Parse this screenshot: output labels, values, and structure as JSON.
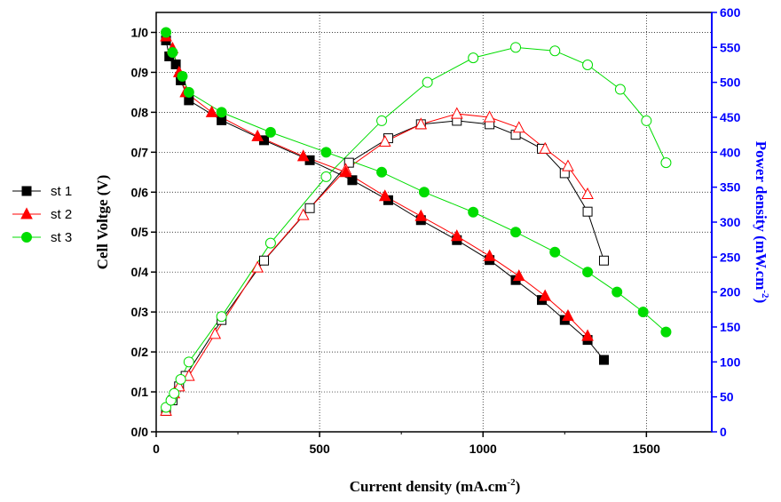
{
  "chart_data": {
    "type": "line",
    "title": "",
    "xlabel": "Current density (mA.cm",
    "xlabel_sup": "-2",
    "xlabel_tail": ")",
    "ylabel_left": "Cell Voltge (V)",
    "ylabel_right": "Power density (mW.cm",
    "ylabel_right_sup": "-2",
    "ylabel_right_tail": ")",
    "xlim": [
      0,
      1700
    ],
    "ylim_left": [
      0,
      1.05
    ],
    "ylim_right": [
      0,
      600
    ],
    "x_ticks": [
      {
        "value": 0,
        "label": "0"
      },
      {
        "value": 500,
        "label": "500"
      },
      {
        "value": 1000,
        "label": "1000"
      },
      {
        "value": 1500,
        "label": "1500"
      }
    ],
    "y_left_ticks": [
      {
        "value": 0,
        "label": "0/0"
      },
      {
        "value": 0.1,
        "label": "0/1"
      },
      {
        "value": 0.2,
        "label": "0/2"
      },
      {
        "value": 0.3,
        "label": "0/3"
      },
      {
        "value": 0.4,
        "label": "0/4"
      },
      {
        "value": 0.5,
        "label": "0/5"
      },
      {
        "value": 0.6,
        "label": "0/6"
      },
      {
        "value": 0.7,
        "label": "0/7"
      },
      {
        "value": 0.8,
        "label": "0/8"
      },
      {
        "value": 0.9,
        "label": "0/9"
      },
      {
        "value": 1.0,
        "label": "1/0"
      }
    ],
    "y_right_ticks": [
      {
        "value": 0,
        "label": "0"
      },
      {
        "value": 50,
        "label": "50"
      },
      {
        "value": 100,
        "label": "100"
      },
      {
        "value": 150,
        "label": "150"
      },
      {
        "value": 200,
        "label": "200"
      },
      {
        "value": 250,
        "label": "250"
      },
      {
        "value": 300,
        "label": "300"
      },
      {
        "value": 350,
        "label": "350"
      },
      {
        "value": 400,
        "label": "400"
      },
      {
        "value": 450,
        "label": "450"
      },
      {
        "value": 500,
        "label": "500"
      },
      {
        "value": 550,
        "label": "550"
      },
      {
        "value": 600,
        "label": "600"
      }
    ],
    "grid": true,
    "legend_position": "left",
    "series": [
      {
        "name": "st 1",
        "color": "#000000",
        "marker": "square",
        "voltage": [
          [
            30,
            0.98
          ],
          [
            40,
            0.94
          ],
          [
            60,
            0.92
          ],
          [
            75,
            0.88
          ],
          [
            100,
            0.83
          ],
          [
            200,
            0.78
          ],
          [
            330,
            0.73
          ],
          [
            470,
            0.68
          ],
          [
            600,
            0.63
          ],
          [
            710,
            0.58
          ],
          [
            810,
            0.53
          ],
          [
            920,
            0.48
          ],
          [
            1020,
            0.43
          ],
          [
            1100,
            0.38
          ],
          [
            1180,
            0.33
          ],
          [
            1250,
            0.28
          ],
          [
            1320,
            0.23
          ],
          [
            1370,
            0.18
          ]
        ],
        "power": [
          [
            30,
            30
          ],
          [
            50,
            45
          ],
          [
            70,
            65
          ],
          [
            90,
            80
          ],
          [
            200,
            160
          ],
          [
            330,
            245
          ],
          [
            470,
            320
          ],
          [
            590,
            385
          ],
          [
            710,
            420
          ],
          [
            810,
            440
          ],
          [
            920,
            445
          ],
          [
            1020,
            440
          ],
          [
            1100,
            425
          ],
          [
            1180,
            405
          ],
          [
            1250,
            370
          ],
          [
            1320,
            315
          ],
          [
            1370,
            245
          ]
        ]
      },
      {
        "name": "st 2",
        "color": "#ff0000",
        "marker": "triangle",
        "voltage": [
          [
            30,
            0.99
          ],
          [
            50,
            0.96
          ],
          [
            70,
            0.9
          ],
          [
            90,
            0.85
          ],
          [
            170,
            0.8
          ],
          [
            310,
            0.74
          ],
          [
            450,
            0.69
          ],
          [
            580,
            0.65
          ],
          [
            700,
            0.59
          ],
          [
            810,
            0.54
          ],
          [
            920,
            0.49
          ],
          [
            1020,
            0.44
          ],
          [
            1110,
            0.39
          ],
          [
            1190,
            0.34
          ],
          [
            1260,
            0.29
          ],
          [
            1320,
            0.24
          ]
        ],
        "power": [
          [
            30,
            30
          ],
          [
            55,
            55
          ],
          [
            70,
            65
          ],
          [
            100,
            80
          ],
          [
            180,
            140
          ],
          [
            310,
            235
          ],
          [
            450,
            310
          ],
          [
            580,
            375
          ],
          [
            700,
            415
          ],
          [
            810,
            440
          ],
          [
            920,
            455
          ],
          [
            1020,
            450
          ],
          [
            1110,
            435
          ],
          [
            1190,
            405
          ],
          [
            1260,
            380
          ],
          [
            1320,
            340
          ]
        ]
      },
      {
        "name": "st 3",
        "color": "#00dd00",
        "marker": "circle",
        "voltage": [
          [
            30,
            1.0
          ],
          [
            50,
            0.95
          ],
          [
            80,
            0.89
          ],
          [
            100,
            0.85
          ],
          [
            200,
            0.8
          ],
          [
            350,
            0.75
          ],
          [
            520,
            0.7
          ],
          [
            690,
            0.65
          ],
          [
            820,
            0.6
          ],
          [
            970,
            0.55
          ],
          [
            1100,
            0.5
          ],
          [
            1220,
            0.45
          ],
          [
            1320,
            0.4
          ],
          [
            1410,
            0.35
          ],
          [
            1490,
            0.3
          ],
          [
            1560,
            0.25
          ]
        ],
        "power": [
          [
            30,
            35
          ],
          [
            45,
            45
          ],
          [
            55,
            55
          ],
          [
            75,
            75
          ],
          [
            100,
            100
          ],
          [
            200,
            165
          ],
          [
            350,
            270
          ],
          [
            520,
            365
          ],
          [
            690,
            445
          ],
          [
            830,
            500
          ],
          [
            970,
            535
          ],
          [
            1100,
            550
          ],
          [
            1220,
            545
          ],
          [
            1320,
            525
          ],
          [
            1420,
            490
          ],
          [
            1500,
            445
          ],
          [
            1560,
            385
          ]
        ]
      }
    ]
  }
}
